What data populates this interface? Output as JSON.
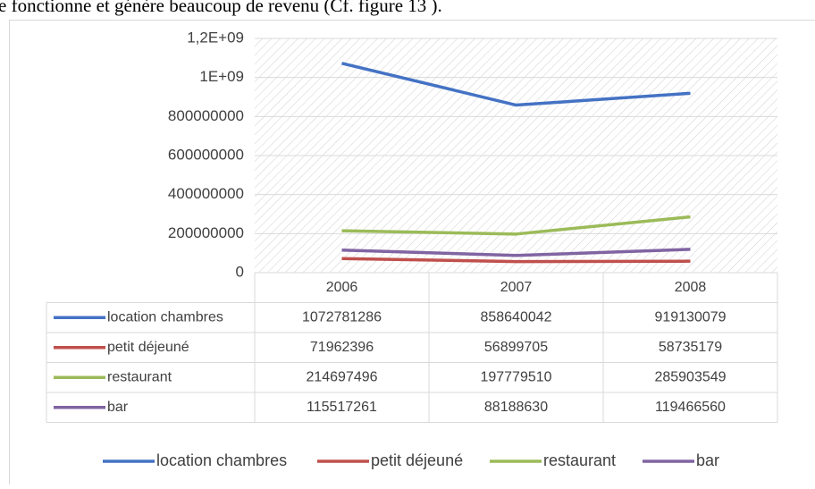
{
  "text_above": "e fonctionne et génère beaucoup de revenu (Cf. figure 13 ).",
  "chart_data": {
    "type": "line",
    "categories": [
      "2006",
      "2007",
      "2008"
    ],
    "series": [
      {
        "name": "location chambres",
        "color": "#4472c4",
        "values": [
          1072781286,
          858640042,
          919130079
        ]
      },
      {
        "name": "petit déjeuné",
        "color": "#c0504d",
        "values": [
          71962396,
          56899705,
          58735179
        ]
      },
      {
        "name": "restaurant",
        "color": "#9bbb59",
        "values": [
          214697496,
          197779510,
          285903549
        ]
      },
      {
        "name": "bar",
        "color": "#8064a2",
        "values": [
          115517261,
          88188630,
          119466560
        ]
      }
    ],
    "ylim": [
      0,
      1200000000
    ],
    "yticks": [
      0,
      200000000,
      400000000,
      600000000,
      800000000,
      {
        "value": 1000000000,
        "label": "1E+09"
      },
      {
        "value": 1200000000,
        "label": "1,2E+09"
      }
    ],
    "grid": true,
    "data_table": true,
    "legend": "bottom"
  }
}
